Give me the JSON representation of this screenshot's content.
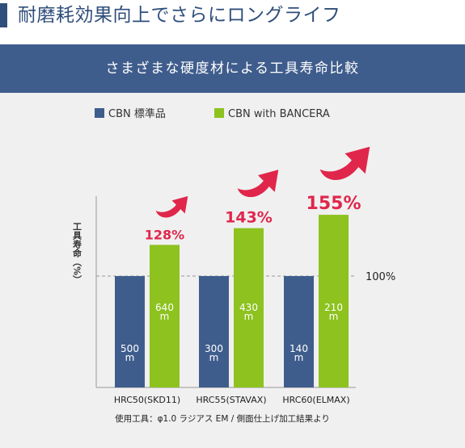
{
  "header": {
    "title": "耐磨耗効果向上でさらにロングライフ"
  },
  "banner": {
    "title": "さまざまな硬度材による工具寿命比較"
  },
  "colors": {
    "cbn_standard": "#3f5d8c",
    "cbn_bancera": "#8dc21f",
    "percent_label": "#e0264b",
    "arrow": "#e0264b",
    "heading": "#2f4e7b",
    "panel_background": "#f0f0f0"
  },
  "chart_data": {
    "type": "bar",
    "ylabel": "工具寿命（%）",
    "reference_line_label": "100%",
    "categories": [
      "HRC50(SKD11)",
      "HRC55(STAVAX)",
      "HRC60(ELMAX)"
    ],
    "series": [
      {
        "name": "CBN 標準品",
        "relative_life_percent": [
          100,
          100,
          100
        ],
        "bar_labels": [
          "500\nm",
          "300\nm",
          "140\nm"
        ]
      },
      {
        "name": "CBN with BANCERA",
        "relative_life_percent": [
          128,
          143,
          155
        ],
        "bar_labels": [
          "640\nm",
          "430\nm",
          "210\nm"
        ]
      }
    ],
    "improvement_labels": [
      "128%",
      "143%",
      "155%"
    ],
    "ylim": [
      0,
      175
    ],
    "grid": false,
    "legend_position": "top-left",
    "footnote": "使用工具：φ1.0 ラジアス EM / 側面仕上げ加工結果より"
  }
}
